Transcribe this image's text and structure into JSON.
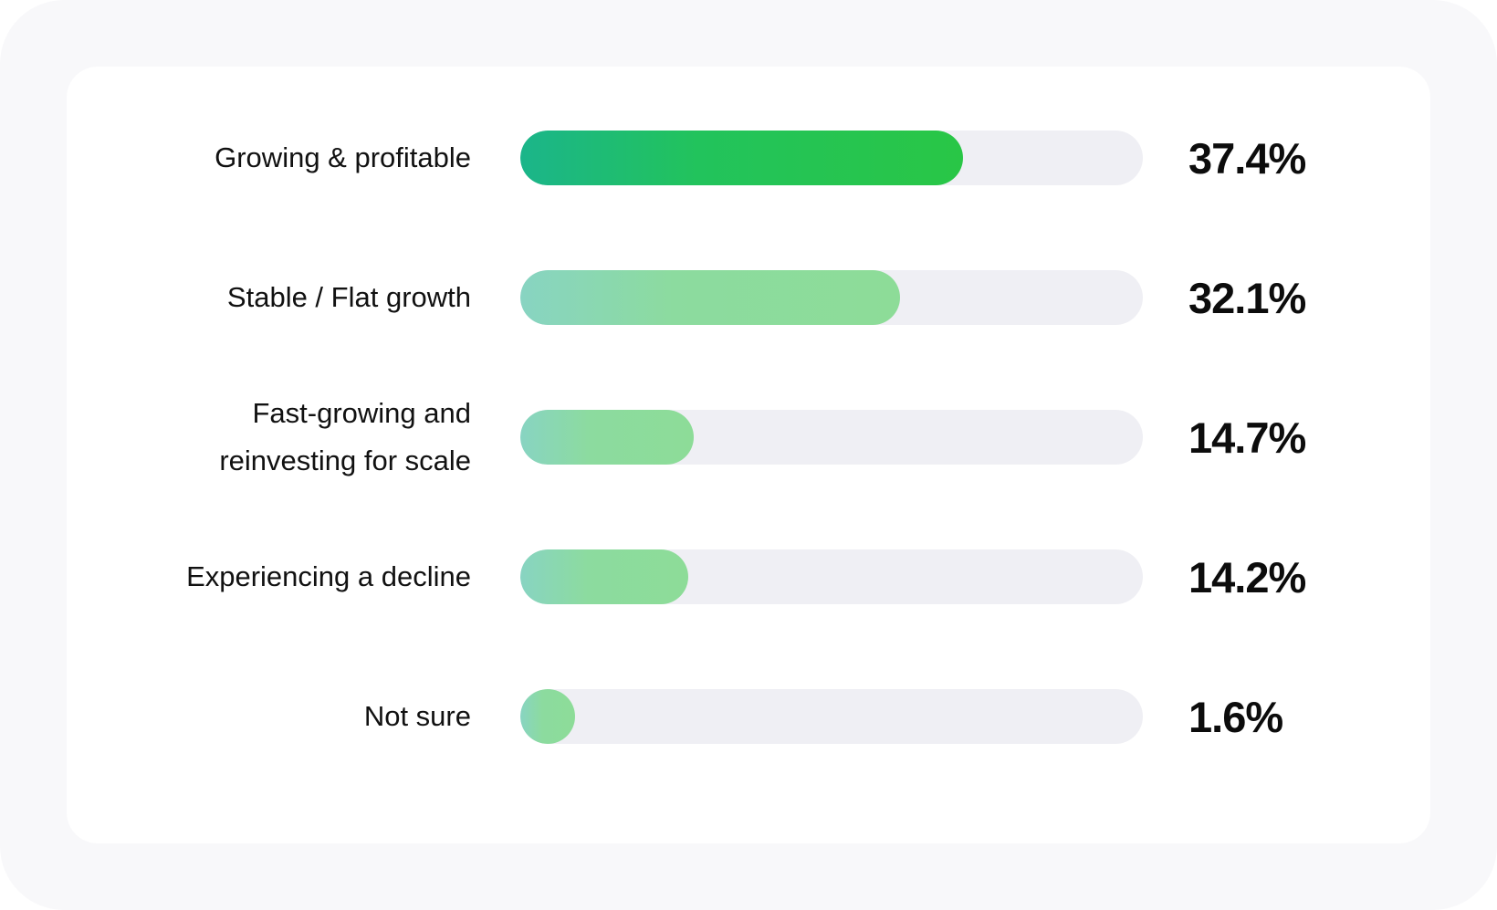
{
  "chart_data": {
    "type": "bar",
    "orientation": "horizontal",
    "categories": [
      "Growing & profitable",
      "Stable / Flat growth",
      "Fast-growing and\nreinvesting for scale",
      "Experiencing a decline",
      "Not sure"
    ],
    "values": [
      37.4,
      32.1,
      14.7,
      14.2,
      1.6
    ],
    "value_labels": [
      "37.4%",
      "32.1%",
      "14.7%",
      "14.2%",
      "1.6%"
    ],
    "xlim": [
      0,
      50
    ],
    "grid": false,
    "colors": {
      "highlight_start": "#1bb58a",
      "highlight_end": "#29c646",
      "default_start": "#88d4c2",
      "default_end": "#8ddc98",
      "track": "#efeff4"
    }
  }
}
